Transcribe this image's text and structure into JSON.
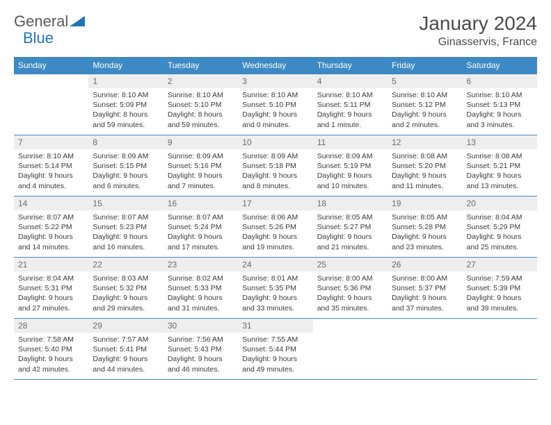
{
  "brand": {
    "part1": "General",
    "part2": "Blue"
  },
  "title": "January 2024",
  "location": "Ginasservis, France",
  "colors": {
    "header_bg": "#3d89c3",
    "header_text": "#ffffff",
    "daynum_bg": "#eeeeee",
    "border": "#3d89c3",
    "brand_blue": "#1e74b8"
  },
  "weekdays": [
    "Sunday",
    "Monday",
    "Tuesday",
    "Wednesday",
    "Thursday",
    "Friday",
    "Saturday"
  ],
  "weeks": [
    [
      null,
      {
        "n": "1",
        "sr": "8:10 AM",
        "ss": "5:09 PM",
        "dl": "8 hours and 59 minutes."
      },
      {
        "n": "2",
        "sr": "8:10 AM",
        "ss": "5:10 PM",
        "dl": "8 hours and 59 minutes."
      },
      {
        "n": "3",
        "sr": "8:10 AM",
        "ss": "5:10 PM",
        "dl": "9 hours and 0 minutes."
      },
      {
        "n": "4",
        "sr": "8:10 AM",
        "ss": "5:11 PM",
        "dl": "9 hours and 1 minute."
      },
      {
        "n": "5",
        "sr": "8:10 AM",
        "ss": "5:12 PM",
        "dl": "9 hours and 2 minutes."
      },
      {
        "n": "6",
        "sr": "8:10 AM",
        "ss": "5:13 PM",
        "dl": "9 hours and 3 minutes."
      }
    ],
    [
      {
        "n": "7",
        "sr": "8:10 AM",
        "ss": "5:14 PM",
        "dl": "9 hours and 4 minutes."
      },
      {
        "n": "8",
        "sr": "8:09 AM",
        "ss": "5:15 PM",
        "dl": "9 hours and 6 minutes."
      },
      {
        "n": "9",
        "sr": "8:09 AM",
        "ss": "5:16 PM",
        "dl": "9 hours and 7 minutes."
      },
      {
        "n": "10",
        "sr": "8:09 AM",
        "ss": "5:18 PM",
        "dl": "9 hours and 8 minutes."
      },
      {
        "n": "11",
        "sr": "8:09 AM",
        "ss": "5:19 PM",
        "dl": "9 hours and 10 minutes."
      },
      {
        "n": "12",
        "sr": "8:08 AM",
        "ss": "5:20 PM",
        "dl": "9 hours and 11 minutes."
      },
      {
        "n": "13",
        "sr": "8:08 AM",
        "ss": "5:21 PM",
        "dl": "9 hours and 13 minutes."
      }
    ],
    [
      {
        "n": "14",
        "sr": "8:07 AM",
        "ss": "5:22 PM",
        "dl": "9 hours and 14 minutes."
      },
      {
        "n": "15",
        "sr": "8:07 AM",
        "ss": "5:23 PM",
        "dl": "9 hours and 16 minutes."
      },
      {
        "n": "16",
        "sr": "8:07 AM",
        "ss": "5:24 PM",
        "dl": "9 hours and 17 minutes."
      },
      {
        "n": "17",
        "sr": "8:06 AM",
        "ss": "5:26 PM",
        "dl": "9 hours and 19 minutes."
      },
      {
        "n": "18",
        "sr": "8:05 AM",
        "ss": "5:27 PM",
        "dl": "9 hours and 21 minutes."
      },
      {
        "n": "19",
        "sr": "8:05 AM",
        "ss": "5:28 PM",
        "dl": "9 hours and 23 minutes."
      },
      {
        "n": "20",
        "sr": "8:04 AM",
        "ss": "5:29 PM",
        "dl": "9 hours and 25 minutes."
      }
    ],
    [
      {
        "n": "21",
        "sr": "8:04 AM",
        "ss": "5:31 PM",
        "dl": "9 hours and 27 minutes."
      },
      {
        "n": "22",
        "sr": "8:03 AM",
        "ss": "5:32 PM",
        "dl": "9 hours and 29 minutes."
      },
      {
        "n": "23",
        "sr": "8:02 AM",
        "ss": "5:33 PM",
        "dl": "9 hours and 31 minutes."
      },
      {
        "n": "24",
        "sr": "8:01 AM",
        "ss": "5:35 PM",
        "dl": "9 hours and 33 minutes."
      },
      {
        "n": "25",
        "sr": "8:00 AM",
        "ss": "5:36 PM",
        "dl": "9 hours and 35 minutes."
      },
      {
        "n": "26",
        "sr": "8:00 AM",
        "ss": "5:37 PM",
        "dl": "9 hours and 37 minutes."
      },
      {
        "n": "27",
        "sr": "7:59 AM",
        "ss": "5:39 PM",
        "dl": "9 hours and 39 minutes."
      }
    ],
    [
      {
        "n": "28",
        "sr": "7:58 AM",
        "ss": "5:40 PM",
        "dl": "9 hours and 42 minutes."
      },
      {
        "n": "29",
        "sr": "7:57 AM",
        "ss": "5:41 PM",
        "dl": "9 hours and 44 minutes."
      },
      {
        "n": "30",
        "sr": "7:56 AM",
        "ss": "5:43 PM",
        "dl": "9 hours and 46 minutes."
      },
      {
        "n": "31",
        "sr": "7:55 AM",
        "ss": "5:44 PM",
        "dl": "9 hours and 49 minutes."
      },
      null,
      null,
      null
    ]
  ],
  "labels": {
    "sunrise": "Sunrise:",
    "sunset": "Sunset:",
    "daylight": "Daylight:"
  }
}
